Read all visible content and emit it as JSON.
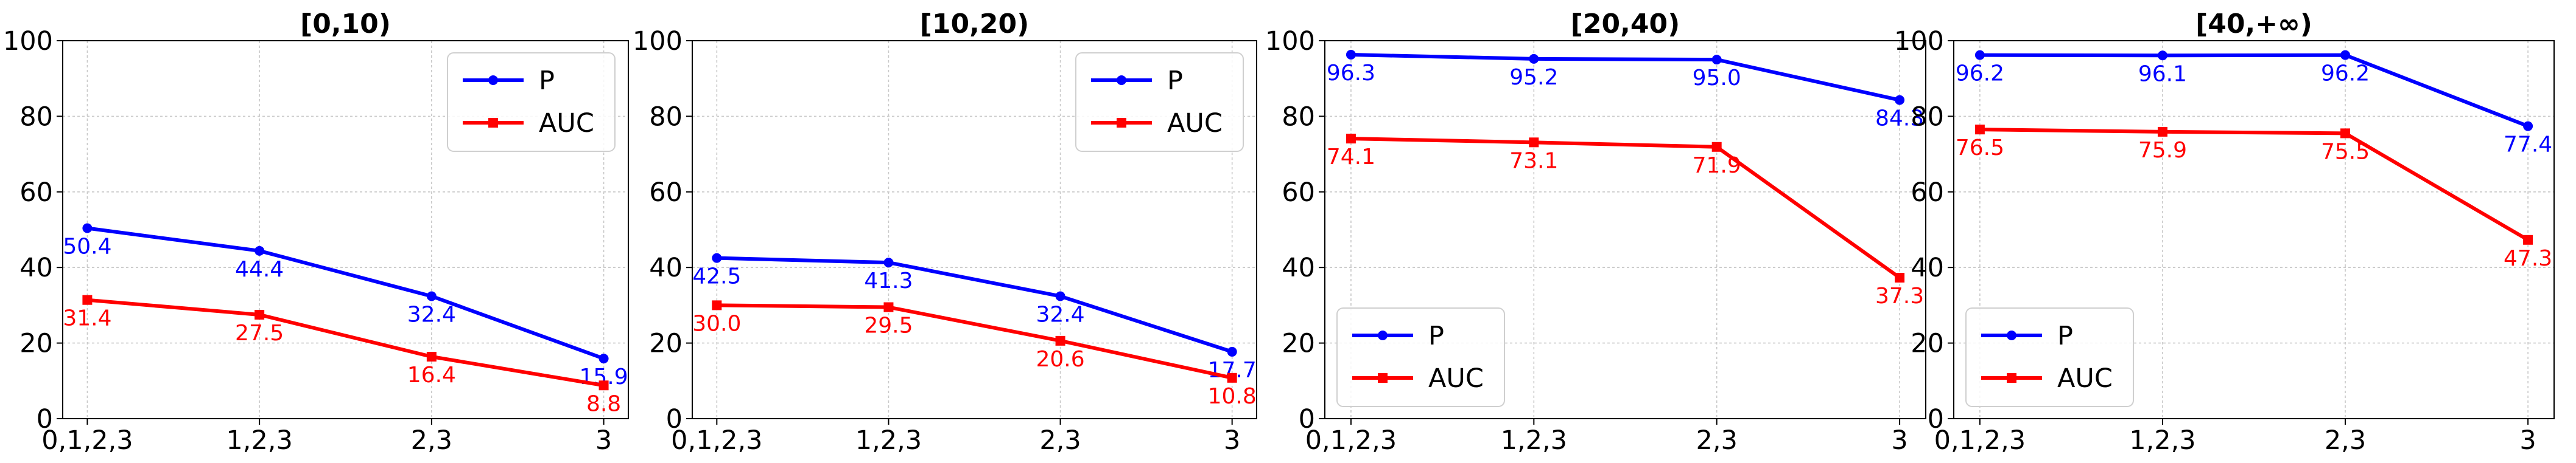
{
  "chart_data": [
    {
      "type": "line",
      "title": "[0,10)",
      "categories": [
        "0,1,2,3",
        "1,2,3",
        "2,3",
        "3"
      ],
      "ylim": [
        0,
        100
      ],
      "yticks": [
        0,
        20,
        40,
        60,
        80,
        100
      ],
      "grid": true,
      "legend_position": "top-right",
      "series": [
        {
          "name": "P",
          "color": "#0000ff",
          "marker": "circle",
          "values": [
            50.4,
            44.4,
            32.4,
            15.9
          ],
          "labels": [
            "50.4",
            "44.4",
            "32.4",
            "15.9"
          ]
        },
        {
          "name": "AUC",
          "color": "#ff0000",
          "marker": "square",
          "values": [
            31.4,
            27.5,
            16.4,
            8.8
          ],
          "labels": [
            "31.4",
            "27.5",
            "16.4",
            "8.8"
          ]
        }
      ]
    },
    {
      "type": "line",
      "title": "[10,20)",
      "categories": [
        "0,1,2,3",
        "1,2,3",
        "2,3",
        "3"
      ],
      "ylim": [
        0,
        100
      ],
      "yticks": [
        0,
        20,
        40,
        60,
        80,
        100
      ],
      "grid": true,
      "legend_position": "top-right",
      "series": [
        {
          "name": "P",
          "color": "#0000ff",
          "marker": "circle",
          "values": [
            42.5,
            41.3,
            32.4,
            17.7
          ],
          "labels": [
            "42.5",
            "41.3",
            "32.4",
            "17.7"
          ]
        },
        {
          "name": "AUC",
          "color": "#ff0000",
          "marker": "square",
          "values": [
            30.0,
            29.5,
            20.6,
            10.8
          ],
          "labels": [
            "30.0",
            "29.5",
            "20.6",
            "10.8"
          ]
        }
      ]
    },
    {
      "type": "line",
      "title": "[20,40)",
      "categories": [
        "0,1,2,3",
        "1,2,3",
        "2,3",
        "3"
      ],
      "ylim": [
        0,
        100
      ],
      "yticks": [
        0,
        20,
        40,
        60,
        80,
        100
      ],
      "grid": true,
      "legend_position": "bottom-left",
      "series": [
        {
          "name": "P",
          "color": "#0000ff",
          "marker": "circle",
          "values": [
            96.3,
            95.2,
            95.0,
            84.3
          ],
          "labels": [
            "96.3",
            "95.2",
            "95.0",
            "84.3"
          ]
        },
        {
          "name": "AUC",
          "color": "#ff0000",
          "marker": "square",
          "values": [
            74.1,
            73.1,
            71.9,
            37.3
          ],
          "labels": [
            "74.1",
            "73.1",
            "71.9",
            "37.3"
          ]
        }
      ]
    },
    {
      "type": "line",
      "title": "[40,+∞)",
      "categories": [
        "0,1,2,3",
        "1,2,3",
        "2,3",
        "3"
      ],
      "ylim": [
        0,
        100
      ],
      "yticks": [
        0,
        20,
        40,
        60,
        80,
        100
      ],
      "grid": true,
      "legend_position": "bottom-left",
      "series": [
        {
          "name": "P",
          "color": "#0000ff",
          "marker": "circle",
          "values": [
            96.2,
            96.1,
            96.2,
            77.4
          ],
          "labels": [
            "96.2",
            "96.1",
            "96.2",
            "77.4"
          ]
        },
        {
          "name": "AUC",
          "color": "#ff0000",
          "marker": "square",
          "values": [
            76.5,
            75.9,
            75.5,
            47.3
          ],
          "labels": [
            "76.5",
            "75.9",
            "75.5",
            "47.3"
          ]
        }
      ]
    }
  ]
}
